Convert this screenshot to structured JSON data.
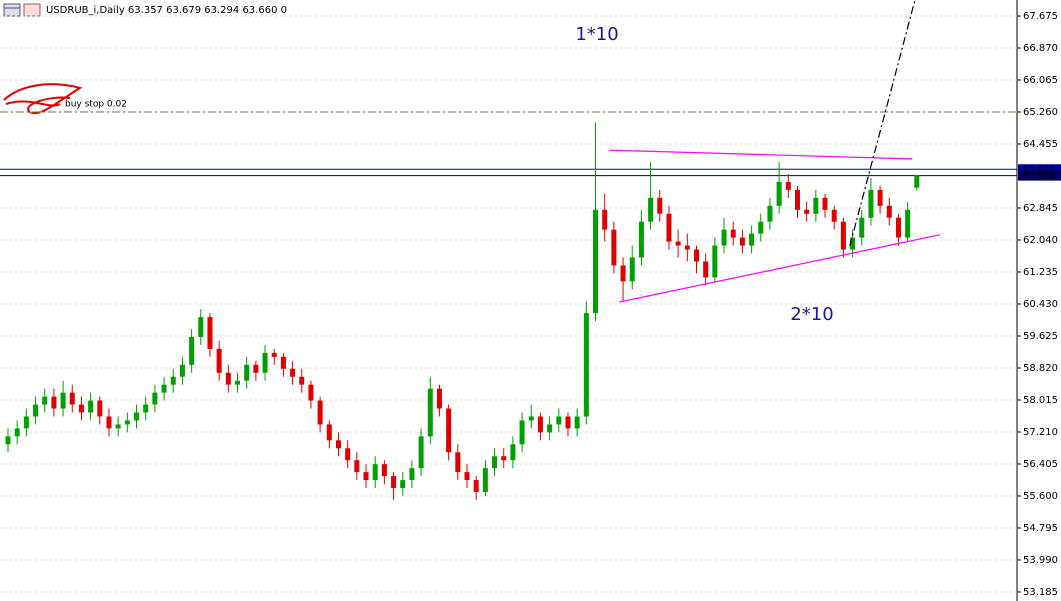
{
  "chart_data": {
    "type": "candlestick",
    "title": "USDRUB_i,Daily  63.357 63.679 63.294 63.660  0",
    "up_color": "#00a000",
    "down_color": "#e00000",
    "grid": true,
    "ylim": [
      53.033,
      68.078
    ],
    "yticks": [
      53.185,
      {
        "value": 53.99,
        "label": "53.990"
      },
      54.795,
      {
        "value": 55.6,
        "label": "55.600"
      },
      56.405,
      {
        "value": 57.21,
        "label": "57.210"
      },
      58.015,
      {
        "value": 58.82,
        "label": "58.820"
      },
      59.625,
      {
        "value": 60.43,
        "label": "60.430"
      },
      61.235,
      {
        "value": 62.04,
        "label": "62.040"
      },
      62.845,
      64.455,
      {
        "value": 65.26,
        "label": "65.260"
      },
      66.065,
      {
        "value": 66.87,
        "label": "66.870"
      },
      67.675
    ],
    "ohlc": [
      [
        56.9,
        57.3,
        56.7,
        57.1
      ],
      [
        57.1,
        57.5,
        56.9,
        57.3
      ],
      [
        57.3,
        57.8,
        57.1,
        57.6
      ],
      [
        57.6,
        58.1,
        57.4,
        57.9
      ],
      [
        57.9,
        58.3,
        57.7,
        58.1
      ],
      [
        58.1,
        58.3,
        57.6,
        57.8
      ],
      [
        57.8,
        58.5,
        57.6,
        58.2
      ],
      [
        58.2,
        58.4,
        57.7,
        57.9
      ],
      [
        57.9,
        58.1,
        57.5,
        57.7
      ],
      [
        57.7,
        58.2,
        57.5,
        58.0
      ],
      [
        58.0,
        58.1,
        57.4,
        57.6
      ],
      [
        57.6,
        57.8,
        57.1,
        57.3
      ],
      [
        57.3,
        57.6,
        57.1,
        57.4
      ],
      [
        57.4,
        57.7,
        57.2,
        57.5
      ],
      [
        57.5,
        57.9,
        57.3,
        57.7
      ],
      [
        57.7,
        58.1,
        57.5,
        57.9
      ],
      [
        57.9,
        58.4,
        57.7,
        58.2
      ],
      [
        58.2,
        58.6,
        58.0,
        58.4
      ],
      [
        58.4,
        58.8,
        58.2,
        58.6
      ],
      [
        58.6,
        59.1,
        58.4,
        58.9
      ],
      [
        58.9,
        59.8,
        58.7,
        59.6
      ],
      [
        59.6,
        60.3,
        59.4,
        60.1
      ],
      [
        60.1,
        60.2,
        59.1,
        59.3
      ],
      [
        59.3,
        59.5,
        58.5,
        58.7
      ],
      [
        58.7,
        58.9,
        58.2,
        58.4
      ],
      [
        58.4,
        58.7,
        58.2,
        58.5
      ],
      [
        58.5,
        59.1,
        58.3,
        58.9
      ],
      [
        58.9,
        59.0,
        58.5,
        58.7
      ],
      [
        58.7,
        59.4,
        58.5,
        59.2
      ],
      [
        59.2,
        59.3,
        58.9,
        59.1
      ],
      [
        59.1,
        59.2,
        58.6,
        58.8
      ],
      [
        58.8,
        59.0,
        58.4,
        58.6
      ],
      [
        58.6,
        58.8,
        58.2,
        58.4
      ],
      [
        58.4,
        58.5,
        57.8,
        58.0
      ],
      [
        58.0,
        58.1,
        57.2,
        57.4
      ],
      [
        57.4,
        57.5,
        56.8,
        57.0
      ],
      [
        57.0,
        57.2,
        56.6,
        56.8
      ],
      [
        56.8,
        57.0,
        56.3,
        56.5
      ],
      [
        56.5,
        56.7,
        56.0,
        56.2
      ],
      [
        56.2,
        56.4,
        55.8,
        56.0
      ],
      [
        56.0,
        56.6,
        55.8,
        56.4
      ],
      [
        56.4,
        56.5,
        55.9,
        56.1
      ],
      [
        56.1,
        56.2,
        55.5,
        55.8
      ],
      [
        55.8,
        56.2,
        55.6,
        56.0
      ],
      [
        56.0,
        56.5,
        55.8,
        56.3
      ],
      [
        56.3,
        57.3,
        56.1,
        57.1
      ],
      [
        57.1,
        58.6,
        56.9,
        58.3
      ],
      [
        58.3,
        58.4,
        57.6,
        57.8
      ],
      [
        57.8,
        57.9,
        56.5,
        56.7
      ],
      [
        56.7,
        56.9,
        56.0,
        56.2
      ],
      [
        56.2,
        56.4,
        55.8,
        56.0
      ],
      [
        56.0,
        56.1,
        55.5,
        55.7
      ],
      [
        55.7,
        56.5,
        55.6,
        56.3
      ],
      [
        56.3,
        56.8,
        56.1,
        56.6
      ],
      [
        56.6,
        56.8,
        56.3,
        56.5
      ],
      [
        56.5,
        57.1,
        56.3,
        56.9
      ],
      [
        56.9,
        57.7,
        56.7,
        57.5
      ],
      [
        57.5,
        57.9,
        57.3,
        57.6
      ],
      [
        57.6,
        57.7,
        57.0,
        57.2
      ],
      [
        57.2,
        57.6,
        57.0,
        57.4
      ],
      [
        57.4,
        57.8,
        57.2,
        57.6
      ],
      [
        57.6,
        57.7,
        57.1,
        57.3
      ],
      [
        57.3,
        57.8,
        57.1,
        57.6
      ],
      [
        57.6,
        60.5,
        57.4,
        60.2
      ],
      [
        60.2,
        65.0,
        60.0,
        62.8
      ],
      [
        62.8,
        63.2,
        62.0,
        62.3
      ],
      [
        62.3,
        62.5,
        61.2,
        61.4
      ],
      [
        61.4,
        61.6,
        60.5,
        61.0
      ],
      [
        61.0,
        61.9,
        60.8,
        61.6
      ],
      [
        61.6,
        62.8,
        61.4,
        62.5
      ],
      [
        62.5,
        64.0,
        62.3,
        63.1
      ],
      [
        63.1,
        63.3,
        62.5,
        62.7
      ],
      [
        62.7,
        62.9,
        61.8,
        62.0
      ],
      [
        62.0,
        62.3,
        61.6,
        61.9
      ],
      [
        61.9,
        62.2,
        61.5,
        61.8
      ],
      [
        61.8,
        61.9,
        61.2,
        61.5
      ],
      [
        61.5,
        61.7,
        60.9,
        61.1
      ],
      [
        61.1,
        62.1,
        61.0,
        61.9
      ],
      [
        61.9,
        62.6,
        61.7,
        62.3
      ],
      [
        62.3,
        62.5,
        61.9,
        62.1
      ],
      [
        62.1,
        62.3,
        61.7,
        61.9
      ],
      [
        61.9,
        62.4,
        61.7,
        62.2
      ],
      [
        62.2,
        62.7,
        62.0,
        62.5
      ],
      [
        62.5,
        63.1,
        62.3,
        62.9
      ],
      [
        62.9,
        64.0,
        62.7,
        63.5
      ],
      [
        63.5,
        63.7,
        63.1,
        63.3
      ],
      [
        63.3,
        63.4,
        62.6,
        62.8
      ],
      [
        62.8,
        63.0,
        62.5,
        62.7
      ],
      [
        62.7,
        63.3,
        62.5,
        63.1
      ],
      [
        63.1,
        63.2,
        62.6,
        62.8
      ],
      [
        62.8,
        62.9,
        62.3,
        62.5
      ],
      [
        62.5,
        62.6,
        61.6,
        61.8
      ],
      [
        61.8,
        62.3,
        61.6,
        62.1
      ],
      [
        62.1,
        62.8,
        61.9,
        62.6
      ],
      [
        62.6,
        63.6,
        62.4,
        63.3
      ],
      [
        63.3,
        63.4,
        62.7,
        62.9
      ],
      [
        62.9,
        63.1,
        62.4,
        62.6
      ],
      [
        62.6,
        62.7,
        61.9,
        62.1
      ],
      [
        62.1,
        63.0,
        62.0,
        62.8
      ],
      [
        63.357,
        63.679,
        63.294,
        63.66
      ]
    ],
    "levels": [
      {
        "value": 65.26,
        "color": "#6b6b2f",
        "style": "dashdot",
        "label": "buy stop 0.02"
      },
      {
        "value": 63.82,
        "color": "#0000a0",
        "style": "solid",
        "price_label": "63.820"
      },
      {
        "value": 63.66,
        "color": "#000060",
        "style": "solid",
        "price_label": "63.660"
      }
    ],
    "trendlines": [
      {
        "from": [
          65.5,
          64.3
        ],
        "to": [
          98.5,
          64.08
        ],
        "color": "#ff00ff",
        "style": "solid"
      },
      {
        "from": [
          66.6,
          60.48
        ],
        "to": [
          101.5,
          62.17
        ],
        "color": "#ff00ff",
        "style": "solid"
      },
      {
        "from": [
          91.7,
          61.89
        ],
        "to": [
          98.8,
          68.08
        ],
        "color": "#000000",
        "style": "dashdot"
      }
    ],
    "annotations": [
      "1*10",
      "2*10"
    ]
  }
}
